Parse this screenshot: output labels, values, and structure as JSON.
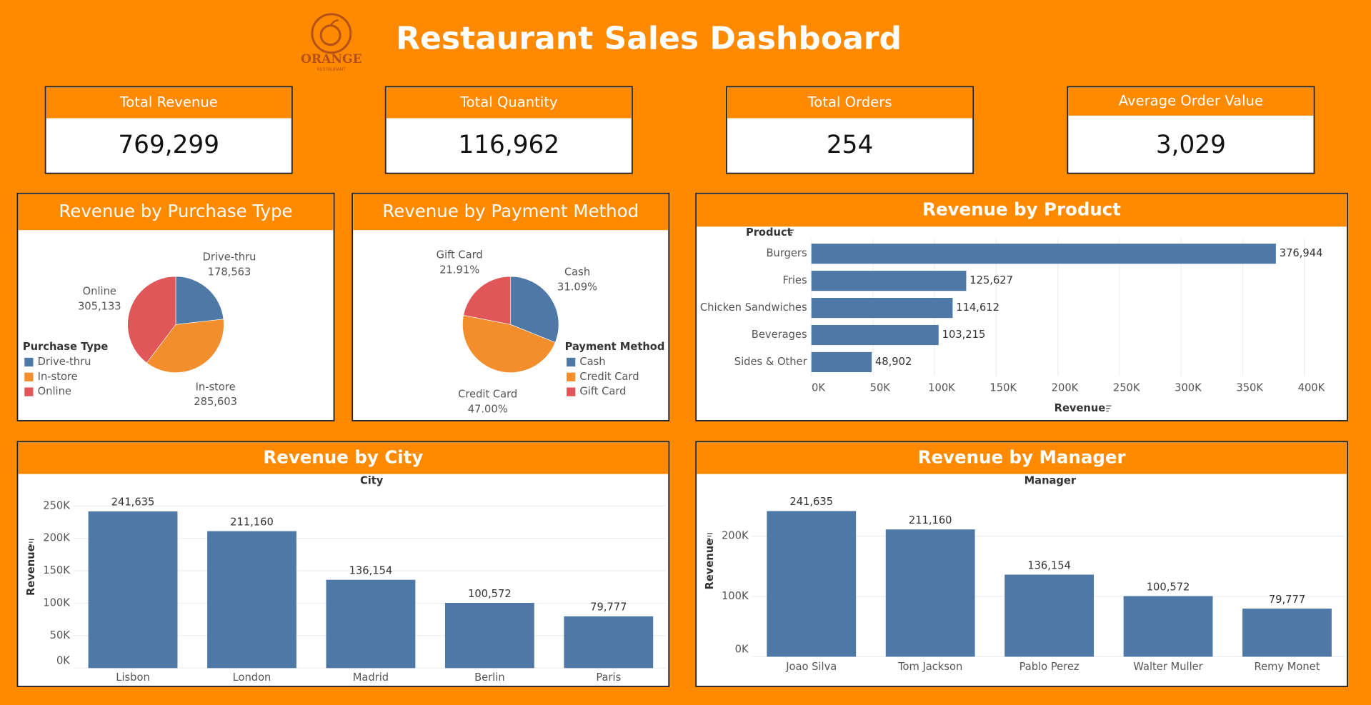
{
  "header": {
    "title": "Restaurant Sales Dashboard",
    "logo": "ORANGE",
    "logo_sub": "RESTAURANT"
  },
  "kpis": [
    {
      "label": "Total Revenue",
      "value": "769,299"
    },
    {
      "label": "Total Quantity",
      "value": "116,962"
    },
    {
      "label": "Total Orders",
      "value": "254"
    },
    {
      "label": "Average Order Value",
      "value": "3,029"
    }
  ],
  "chart_data": [
    {
      "type": "pie",
      "title": "Revenue by Purchase Type",
      "legend_title": "Purchase Type",
      "categories": [
        "Drive-thru",
        "In-store",
        "Online"
      ],
      "values": [
        178563,
        285603,
        305133
      ],
      "value_labels": [
        "178,563",
        "285,603",
        "305,133"
      ],
      "colors": [
        "#4E79A7",
        "#F28E2B",
        "#E15759"
      ]
    },
    {
      "type": "pie",
      "title": "Revenue by Payment Method",
      "legend_title": "Payment Method",
      "categories": [
        "Cash",
        "Credit Card",
        "Gift Card"
      ],
      "values": [
        31.09,
        47.0,
        21.91
      ],
      "value_labels": [
        "31.09%",
        "47.00%",
        "21.91%"
      ],
      "colors": [
        "#4E79A7",
        "#F28E2B",
        "#E15759"
      ]
    },
    {
      "type": "bar",
      "orientation": "horizontal",
      "title": "Revenue by Product",
      "category_axis_title": "Product",
      "value_axis_title": "Revenue",
      "categories": [
        "Burgers",
        "Fries",
        "Chicken Sandwiches",
        "Beverages",
        "Sides & Other"
      ],
      "values": [
        376944,
        125627,
        114612,
        103215,
        48902
      ],
      "value_labels": [
        "376,944",
        "125,627",
        "114,612",
        "103,215",
        "48,902"
      ],
      "color": "#4E79A7",
      "xlim": [
        0,
        430000
      ],
      "xticks": [
        {
          "value": 0,
          "label": "0K"
        },
        {
          "value": 50000,
          "label": "50K"
        },
        {
          "value": 100000,
          "label": "100K"
        },
        {
          "value": 150000,
          "label": "150K"
        },
        {
          "value": 200000,
          "label": "200K"
        },
        {
          "value": 250000,
          "label": "250K"
        },
        {
          "value": 300000,
          "label": "300K"
        },
        {
          "value": 350000,
          "label": "350K"
        },
        {
          "value": 400000,
          "label": "400K"
        }
      ],
      "grid": true
    },
    {
      "type": "bar",
      "orientation": "vertical",
      "title": "Revenue by City",
      "category_axis_title": "City",
      "value_axis_title": "Revenue",
      "categories": [
        "Lisbon",
        "London",
        "Madrid",
        "Berlin",
        "Paris"
      ],
      "values": [
        241635,
        211160,
        136154,
        100572,
        79777
      ],
      "value_labels": [
        "241,635",
        "211,160",
        "136,154",
        "100,572",
        "79,777"
      ],
      "color": "#4E79A7",
      "ylim": [
        0,
        275000
      ],
      "yticks": [
        {
          "value": 0,
          "label": "0K"
        },
        {
          "value": 50000,
          "label": "50K"
        },
        {
          "value": 100000,
          "label": "100K"
        },
        {
          "value": 150000,
          "label": "150K"
        },
        {
          "value": 200000,
          "label": "200K"
        },
        {
          "value": 250000,
          "label": "250K"
        }
      ],
      "grid": true
    },
    {
      "type": "bar",
      "orientation": "vertical",
      "title": "Revenue by Manager",
      "category_axis_title": "Manager",
      "value_axis_title": "Revenue",
      "categories": [
        "Joao Silva",
        "Tom Jackson",
        "Pablo Perez",
        "Walter Muller",
        "Remy Monet"
      ],
      "values": [
        241635,
        211160,
        136154,
        100572,
        79777
      ],
      "value_labels": [
        "241,635",
        "211,160",
        "136,154",
        "100,572",
        "79,777"
      ],
      "color": "#4E79A7",
      "ylim": [
        0,
        277000
      ],
      "yticks": [
        {
          "value": 0,
          "label": "0K"
        },
        {
          "value": 100000,
          "label": "100K"
        },
        {
          "value": 200000,
          "label": "200K"
        }
      ],
      "grid": true
    }
  ]
}
